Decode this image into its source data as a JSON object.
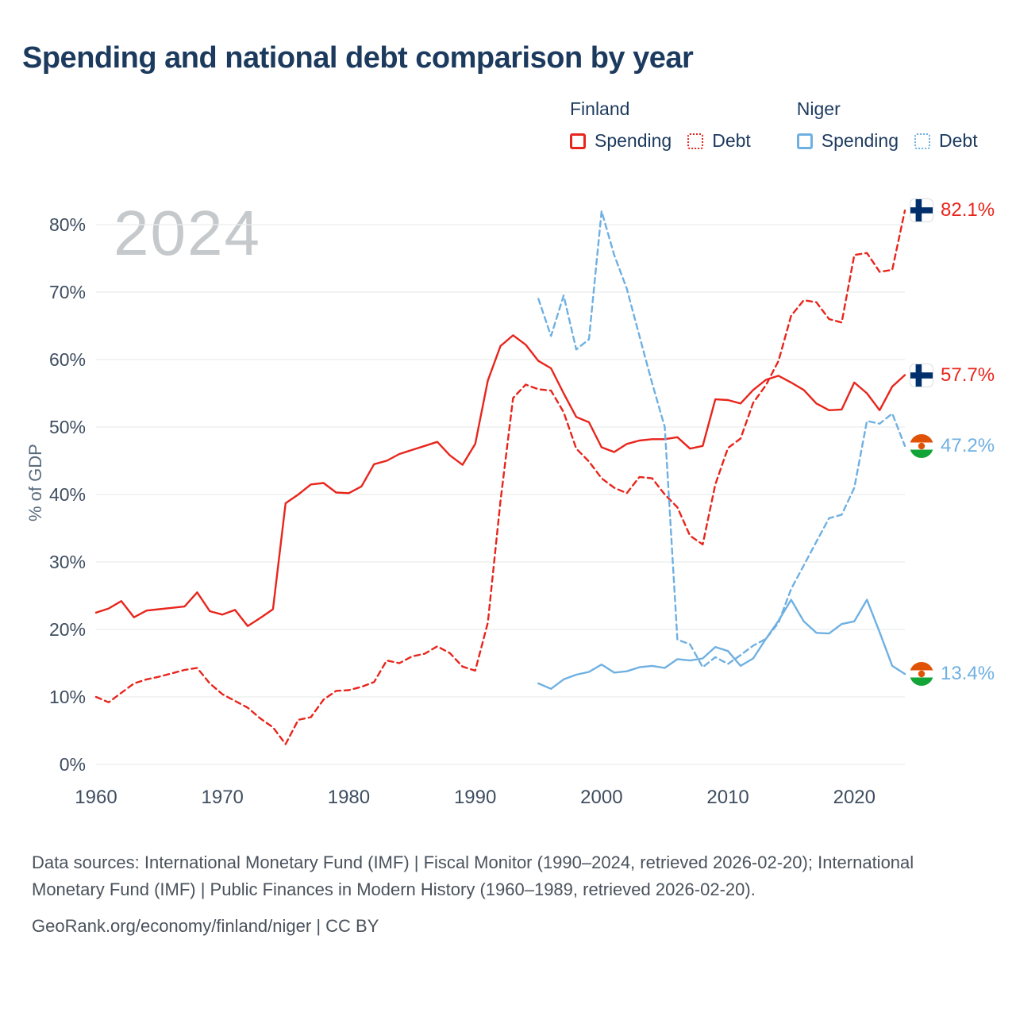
{
  "title": "Spending and national debt comparison by year",
  "watermark": "2024",
  "legend": {
    "groups": [
      {
        "name": "Finland",
        "color": "#e8251c",
        "items": [
          {
            "label": "Spending",
            "style": "solid"
          },
          {
            "label": "Debt",
            "style": "dotted"
          }
        ]
      },
      {
        "name": "Niger",
        "color": "#6fb0e2",
        "items": [
          {
            "label": "Spending",
            "style": "solid"
          },
          {
            "label": "Debt",
            "style": "dotted"
          }
        ]
      }
    ]
  },
  "footer": {
    "sources": "Data sources: International Monetary Fund (IMF) | Fiscal Monitor (1990–2024, retrieved 2026-02-20); International Monetary Fund (IMF) | Public Finances in Modern History (1960–1989, retrieved 2026-02-20).",
    "attribution": "GeoRank.org/economy/finland/niger | CC BY"
  },
  "chart_data": {
    "type": "line",
    "title": "Spending and national debt comparison by year",
    "xlabel": "",
    "ylabel": "% of GDP",
    "ylim": [
      0,
      85
    ],
    "x_range": [
      1960,
      2024
    ],
    "grid": true,
    "legend_position": "top-right",
    "yticks": [
      0,
      10,
      20,
      30,
      40,
      50,
      60,
      70,
      80
    ],
    "ytick_labels": [
      "0%",
      "10%",
      "20%",
      "30%",
      "40%",
      "50%",
      "60%",
      "70%",
      "80%"
    ],
    "xticks": [
      1960,
      1970,
      1980,
      1990,
      2000,
      2010,
      2020
    ],
    "x": [
      1960,
      1961,
      1962,
      1963,
      1964,
      1965,
      1966,
      1967,
      1968,
      1969,
      1970,
      1971,
      1972,
      1973,
      1974,
      1975,
      1976,
      1977,
      1978,
      1979,
      1980,
      1981,
      1982,
      1983,
      1984,
      1985,
      1986,
      1987,
      1988,
      1989,
      1990,
      1991,
      1992,
      1993,
      1994,
      1995,
      1996,
      1997,
      1998,
      1999,
      2000,
      2001,
      2002,
      2003,
      2004,
      2005,
      2006,
      2007,
      2008,
      2009,
      2010,
      2011,
      2012,
      2013,
      2014,
      2015,
      2016,
      2017,
      2018,
      2019,
      2020,
      2021,
      2022,
      2023,
      2024
    ],
    "series": [
      {
        "id": "finland-spending",
        "name": "Finland Spending",
        "country": "Finland",
        "metric": "Spending",
        "color": "#e8251c",
        "dash": false,
        "values": [
          22.5,
          23.1,
          24.2,
          21.8,
          22.8,
          23.0,
          23.2,
          23.4,
          25.5,
          22.7,
          22.2,
          22.9,
          20.5,
          21.7,
          23.0,
          38.7,
          40.0,
          41.5,
          41.7,
          40.3,
          40.2,
          41.2,
          44.5,
          45.0,
          46.0,
          46.6,
          47.2,
          47.8,
          45.8,
          44.4,
          47.5,
          56.9,
          62.0,
          63.6,
          62.2,
          59.8,
          58.7,
          55.0,
          51.5,
          50.7,
          47.0,
          46.3,
          47.5,
          48.0,
          48.2,
          48.2,
          48.5,
          46.8,
          47.2,
          54.1,
          54.0,
          53.5,
          55.5,
          57.0,
          57.6,
          56.6,
          55.5,
          53.5,
          52.5,
          52.6,
          56.6,
          55.0,
          52.5,
          56.0,
          57.7
        ]
      },
      {
        "id": "finland-debt",
        "name": "Finland Debt",
        "country": "Finland",
        "metric": "Debt",
        "color": "#e8251c",
        "dash": true,
        "values": [
          10.0,
          9.2,
          10.6,
          12.0,
          12.6,
          13.0,
          13.5,
          14.0,
          14.3,
          12.0,
          10.4,
          9.4,
          8.4,
          6.8,
          5.5,
          3.0,
          6.6,
          7.0,
          9.6,
          10.9,
          11.0,
          11.5,
          12.2,
          15.4,
          15.0,
          16.0,
          16.4,
          17.5,
          16.5,
          14.5,
          13.9,
          21.0,
          39.0,
          54.3,
          56.3,
          55.6,
          55.4,
          52.2,
          46.8,
          44.9,
          42.4,
          41.0,
          40.2,
          42.6,
          42.4,
          40.0,
          38.1,
          33.9,
          32.6,
          41.5,
          46.9,
          48.3,
          53.6,
          56.2,
          59.8,
          66.5,
          68.8,
          68.5,
          66.0,
          65.5,
          75.5,
          75.8,
          73.0,
          73.3,
          82.1
        ]
      },
      {
        "id": "niger-spending",
        "name": "Niger Spending",
        "country": "Niger",
        "metric": "Spending",
        "color": "#6fb0e2",
        "dash": false,
        "values": [
          null,
          null,
          null,
          null,
          null,
          null,
          null,
          null,
          null,
          null,
          null,
          null,
          null,
          null,
          null,
          null,
          null,
          null,
          null,
          null,
          null,
          null,
          null,
          null,
          null,
          null,
          null,
          null,
          null,
          null,
          null,
          null,
          null,
          null,
          null,
          12.0,
          11.2,
          12.6,
          13.3,
          13.7,
          14.8,
          13.6,
          13.8,
          14.4,
          14.6,
          14.3,
          15.6,
          15.4,
          15.7,
          17.4,
          16.8,
          14.6,
          15.7,
          18.6,
          21.3,
          24.4,
          21.2,
          19.5,
          19.4,
          20.8,
          21.2,
          24.4,
          19.6,
          14.6,
          13.4
        ]
      },
      {
        "id": "niger-debt",
        "name": "Niger Debt",
        "country": "Niger",
        "metric": "Debt",
        "color": "#6fb0e2",
        "dash": true,
        "values": [
          null,
          null,
          null,
          null,
          null,
          null,
          null,
          null,
          null,
          null,
          null,
          null,
          null,
          null,
          null,
          null,
          null,
          null,
          null,
          null,
          null,
          null,
          null,
          null,
          null,
          null,
          null,
          null,
          null,
          null,
          null,
          null,
          null,
          null,
          null,
          69.0,
          63.5,
          69.5,
          61.5,
          63.0,
          82.0,
          75.5,
          70.5,
          63.5,
          56.5,
          50.0,
          18.5,
          17.8,
          14.4,
          15.9,
          14.9,
          16.2,
          17.6,
          18.6,
          21.0,
          26.0,
          29.5,
          33.0,
          36.5,
          37.0,
          41.0,
          50.9,
          50.5,
          52.0,
          47.2
        ]
      }
    ],
    "end_labels": [
      {
        "value": "82.1%",
        "pct": 82.1,
        "series": "Finland Debt",
        "flag": "finland",
        "color": "#e8251c"
      },
      {
        "value": "57.7%",
        "pct": 57.7,
        "series": "Finland Spending",
        "flag": "finland",
        "color": "#e8251c"
      },
      {
        "value": "47.2%",
        "pct": 47.2,
        "series": "Niger Debt",
        "flag": "niger",
        "color": "#6fb0e2"
      },
      {
        "value": "13.4%",
        "pct": 13.4,
        "series": "Niger Spending",
        "flag": "niger",
        "color": "#6fb0e2"
      }
    ]
  }
}
